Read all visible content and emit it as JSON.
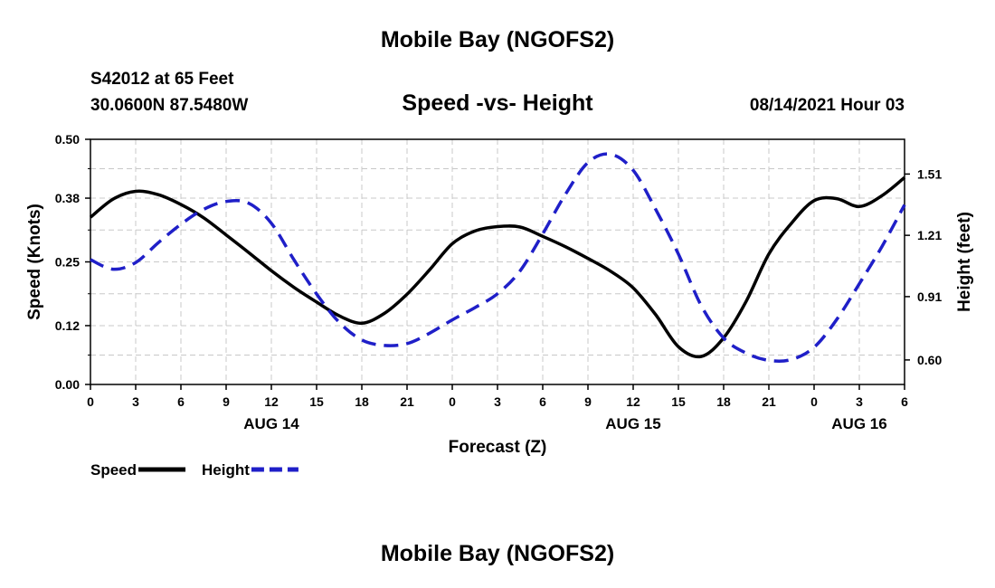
{
  "header": {
    "title_top": "Mobile Bay (NGOFS2)",
    "station": "S42012 at 65 Feet",
    "coords": "30.0600N  87.5480W",
    "subtitle": "Speed -vs- Height",
    "timestamp": "08/14/2021 Hour 03",
    "title_bottom": "Mobile Bay (NGOFS2)"
  },
  "colors": {
    "speed": "#000000",
    "height": "#1f1fc8",
    "grid": "#c8c8c8"
  },
  "chart_data": {
    "type": "line",
    "xlabel": "Forecast (Z)",
    "ylabel_left": "Speed (Knots)",
    "ylabel_right": "Height (feet)",
    "x_ticks": [
      "0",
      "3",
      "6",
      "9",
      "12",
      "15",
      "18",
      "21",
      "0",
      "3",
      "6",
      "9",
      "12",
      "15",
      "18",
      "21",
      "0",
      "3",
      "6"
    ],
    "date_labels": [
      {
        "label": "AUG 14",
        "x": 12
      },
      {
        "label": "AUG 15",
        "x": 36
      },
      {
        "label": "AUG 16",
        "x": 51
      }
    ],
    "xlim": [
      0,
      54
    ],
    "left_axis": {
      "ylim": [
        0,
        0.5
      ],
      "ticks": [
        "0.00",
        "0.12",
        "0.25",
        "0.38",
        "0.50"
      ]
    },
    "right_axis": {
      "ylim": [
        0.48,
        1.68
      ],
      "ticks": [
        "0.60",
        "0.91",
        "1.21",
        "1.51"
      ]
    },
    "grid": true,
    "legend": [
      {
        "label": "Speed",
        "style": "solid"
      },
      {
        "label": "Height",
        "style": "dashed"
      }
    ],
    "series": [
      {
        "name": "Speed",
        "axis": "left",
        "style": "solid",
        "x": [
          0,
          1.5,
          3,
          4.5,
          6,
          7.5,
          9,
          10.5,
          12,
          13.5,
          15,
          16.5,
          18,
          19.5,
          21,
          22.5,
          24,
          25.5,
          27,
          28.5,
          30,
          31.5,
          33,
          34.5,
          36,
          37.5,
          39,
          40.5,
          42,
          43.5,
          45,
          46.5,
          48,
          49.5,
          51,
          52.5,
          54
        ],
        "values": [
          0.341,
          0.378,
          0.394,
          0.387,
          0.367,
          0.34,
          0.305,
          0.269,
          0.232,
          0.198,
          0.168,
          0.14,
          0.125,
          0.145,
          0.184,
          0.234,
          0.287,
          0.313,
          0.322,
          0.321,
          0.302,
          0.281,
          0.257,
          0.231,
          0.197,
          0.142,
          0.077,
          0.057,
          0.095,
          0.17,
          0.266,
          0.329,
          0.375,
          0.379,
          0.363,
          0.385,
          0.422
        ]
      },
      {
        "name": "Height",
        "axis": "right",
        "style": "dashed",
        "x": [
          0,
          1.5,
          3,
          4.5,
          6,
          7.5,
          9,
          10.5,
          12,
          13.5,
          15,
          16.5,
          18,
          19.5,
          21,
          22.5,
          24,
          25.5,
          27,
          28.5,
          30,
          31.5,
          33,
          34.5,
          36,
          37.5,
          39,
          40.5,
          42,
          43.5,
          45,
          46.5,
          48,
          49.5,
          51,
          52.5,
          54
        ],
        "values": [
          1.091,
          1.044,
          1.077,
          1.174,
          1.264,
          1.337,
          1.376,
          1.367,
          1.269,
          1.09,
          0.923,
          0.784,
          0.698,
          0.671,
          0.68,
          0.731,
          0.796,
          0.856,
          0.924,
          1.036,
          1.217,
          1.41,
          1.566,
          1.607,
          1.528,
          1.336,
          1.118,
          0.868,
          0.707,
          0.633,
          0.598,
          0.602,
          0.662,
          0.798,
          0.973,
          1.155,
          1.359
        ]
      }
    ]
  }
}
